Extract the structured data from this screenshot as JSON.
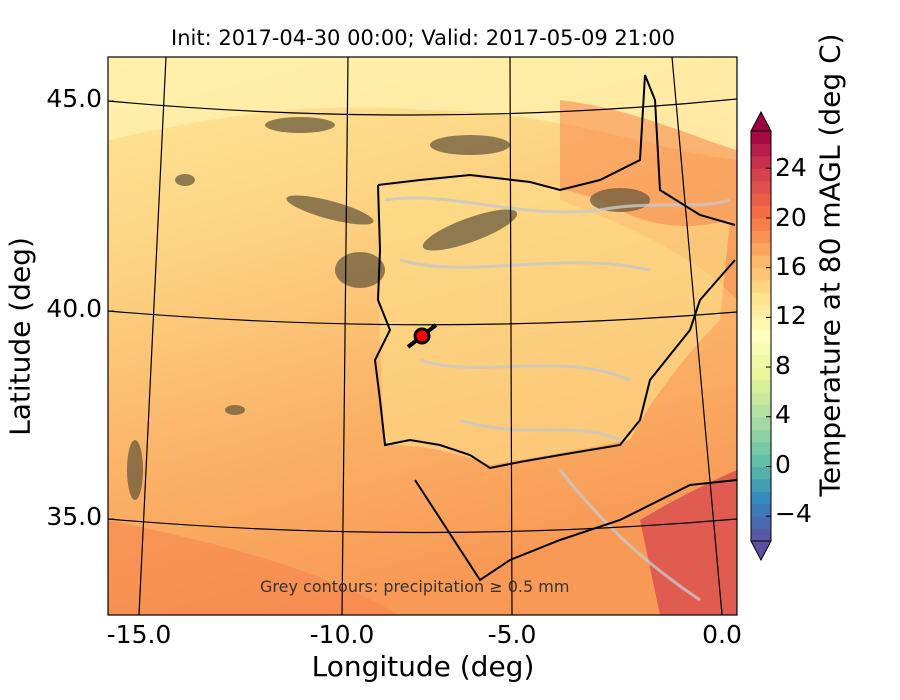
{
  "chart_data": {
    "type": "heatmap",
    "title": "Init: 2017-04-30 00:00; Valid: 2017-05-09 21:00",
    "xlabel": "Longitude (deg)",
    "ylabel": "Latitude (deg)",
    "xticks": [
      "-15.0",
      "-10.0",
      "-5.0",
      "0.0"
    ],
    "xtick_values": [
      -15,
      -10,
      -5,
      0
    ],
    "yticks": [
      "45.0",
      "40.0",
      "35.0"
    ],
    "ytick_values": [
      45,
      40,
      35
    ],
    "xlim": [
      -16,
      0.3
    ],
    "ylim": [
      32.8,
      46.2
    ],
    "colorbar": {
      "label": "Temperature at 80 mAGL (deg C)",
      "colormap": "Spectral_r",
      "range": [
        -6,
        27
      ],
      "extend": "both",
      "ticks": [
        "24",
        "20",
        "16",
        "12",
        "8",
        "4",
        "0",
        "−4"
      ],
      "tick_values": [
        24,
        20,
        16,
        12,
        8,
        4,
        0,
        -4
      ]
    },
    "annotation": "Grey contours: precipitation ≥ 0.5 mm",
    "marker": {
      "lon": -7.7,
      "lat": 39.6,
      "color": "#ff0000"
    }
  }
}
